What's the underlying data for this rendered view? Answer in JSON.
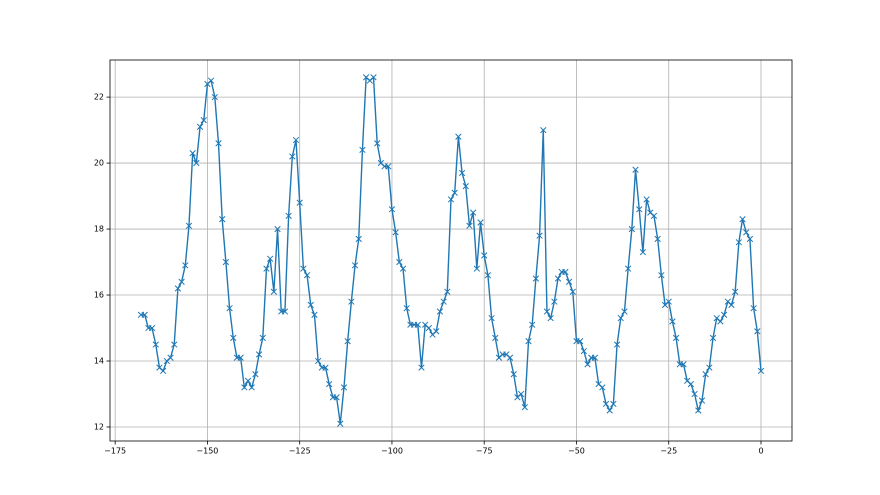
{
  "chart_data": {
    "type": "line",
    "x": [
      -168,
      -167,
      -166,
      -165,
      -164,
      -163,
      -162,
      -161,
      -160,
      -159,
      -158,
      -157,
      -156,
      -155,
      -154,
      -153,
      -152,
      -151,
      -150,
      -149,
      -148,
      -147,
      -146,
      -145,
      -144,
      -143,
      -142,
      -141,
      -140,
      -139,
      -138,
      -137,
      -136,
      -135,
      -134,
      -133,
      -132,
      -131,
      -130,
      -129,
      -128,
      -127,
      -126,
      -125,
      -124,
      -123,
      -122,
      -121,
      -120,
      -119,
      -118,
      -117,
      -116,
      -115,
      -114,
      -113,
      -112,
      -111,
      -110,
      -109,
      -108,
      -107,
      -106,
      -105,
      -104,
      -103,
      -102,
      -101,
      -100,
      -99,
      -98,
      -97,
      -96,
      -95,
      -94,
      -93,
      -92,
      -91,
      -90,
      -89,
      -88,
      -87,
      -86,
      -85,
      -84,
      -83,
      -82,
      -81,
      -80,
      -79,
      -78,
      -77,
      -76,
      -75,
      -74,
      -73,
      -72,
      -71,
      -70,
      -69,
      -68,
      -67,
      -66,
      -65,
      -64,
      -63,
      -62,
      -61,
      -60,
      -59,
      -58,
      -57,
      -56,
      -55,
      -54,
      -53,
      -52,
      -51,
      -50,
      -49,
      -48,
      -47,
      -46,
      -45,
      -44,
      -43,
      -42,
      -41,
      -40,
      -39,
      -38,
      -37,
      -36,
      -35,
      -34,
      -33,
      -32,
      -31,
      -30,
      -29,
      -28,
      -27,
      -26,
      -25,
      -24,
      -23,
      -22,
      -21,
      -20,
      -19,
      -18,
      -17,
      -16,
      -15,
      -14,
      -13,
      -12,
      -11,
      -10,
      -9,
      -8,
      -7,
      -6,
      -5,
      -4,
      -3,
      -2,
      -1,
      0
    ],
    "series": [
      {
        "color": "#1f77b4",
        "values": [
          15.4,
          15.4,
          15.0,
          15.0,
          14.5,
          13.8,
          13.7,
          14.0,
          14.1,
          14.5,
          16.2,
          16.4,
          16.9,
          18.1,
          20.3,
          20.0,
          21.1,
          21.3,
          22.4,
          22.5,
          22.0,
          20.6,
          18.3,
          17.0,
          15.6,
          14.7,
          14.1,
          14.1,
          13.2,
          13.4,
          13.2,
          13.6,
          14.2,
          14.7,
          16.8,
          17.1,
          16.1,
          18.0,
          15.5,
          15.5,
          18.4,
          20.2,
          20.7,
          18.8,
          16.8,
          16.6,
          15.7,
          15.4,
          14.0,
          13.8,
          13.8,
          13.3,
          12.9,
          12.9,
          12.1,
          13.2,
          14.6,
          15.8,
          16.9,
          17.7,
          20.4,
          22.6,
          22.5,
          22.6,
          20.6,
          20.0,
          19.9,
          19.9,
          18.6,
          17.9,
          17.0,
          16.8,
          15.6,
          15.1,
          15.1,
          15.1,
          13.8,
          15.1,
          15.0,
          14.8,
          14.9,
          15.5,
          15.8,
          16.1,
          18.9,
          19.1,
          20.8,
          19.7,
          19.3,
          18.1,
          18.5,
          16.8,
          18.2,
          17.2,
          16.6,
          15.3,
          14.7,
          14.1,
          14.2,
          14.2,
          14.1,
          13.6,
          12.9,
          13.0,
          12.6,
          14.6,
          15.1,
          16.5,
          17.8,
          21.0,
          15.5,
          15.3,
          15.8,
          16.5,
          16.7,
          16.7,
          16.4,
          16.1,
          14.6,
          14.6,
          14.3,
          13.9,
          14.1,
          14.1,
          13.3,
          13.2,
          12.7,
          12.5,
          12.7,
          14.5,
          15.3,
          15.5,
          16.8,
          18.0,
          19.8,
          18.6,
          17.3,
          18.9,
          18.5,
          18.4,
          17.7,
          16.6,
          15.7,
          15.8,
          15.2,
          14.7,
          13.9,
          13.9,
          13.4,
          13.3,
          13.0,
          12.5,
          12.8,
          13.6,
          13.8,
          14.7,
          15.3,
          15.2,
          15.4,
          15.8,
          15.7,
          16.1,
          17.6,
          18.3,
          17.9,
          17.7,
          15.6,
          14.9,
          13.7
        ]
      }
    ],
    "xlim": [
      -176.4,
      8.4
    ],
    "xticks": [
      {
        "value": -175,
        "label": "−175"
      },
      {
        "value": -150,
        "label": "−150"
      },
      {
        "value": -125,
        "label": "−125"
      },
      {
        "value": -100,
        "label": "−100"
      },
      {
        "value": -75,
        "label": "−75"
      },
      {
        "value": -50,
        "label": "−50"
      },
      {
        "value": -25,
        "label": "−25"
      },
      0
    ],
    "ylim": [
      11.575,
      23.125
    ],
    "yticks": [
      12,
      14,
      16,
      18,
      20,
      22
    ],
    "grid": true
  }
}
